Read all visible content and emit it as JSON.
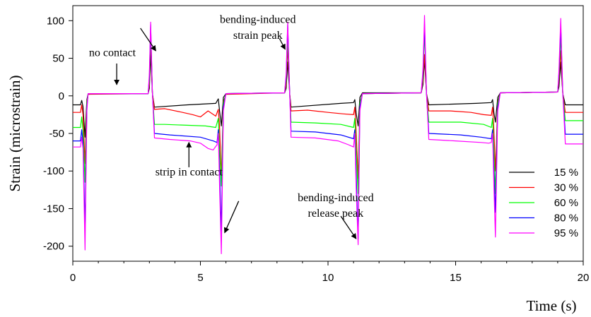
{
  "chart_data": {
    "type": "line",
    "xlabel": "Time (s)",
    "ylabel": "Strain (microstrain)",
    "xlim": [
      0,
      20
    ],
    "ylim": [
      -220,
      120
    ],
    "xticks": [
      0,
      5,
      10,
      15,
      20
    ],
    "yticks": [
      -200,
      -150,
      -100,
      -50,
      0,
      50,
      100
    ],
    "grid": false,
    "legend_position": "bottom-right",
    "series": [
      {
        "name": "15 %",
        "color": "#000000",
        "points": [
          [
            0,
            -12
          ],
          [
            0.3,
            -12
          ],
          [
            0.35,
            -6
          ],
          [
            0.4,
            -14
          ],
          [
            0.48,
            -55
          ],
          [
            0.55,
            -5
          ],
          [
            0.6,
            3
          ],
          [
            2.95,
            3
          ],
          [
            3.0,
            10
          ],
          [
            3.05,
            55
          ],
          [
            3.12,
            3
          ],
          [
            3.2,
            -15
          ],
          [
            4.5,
            -12
          ],
          [
            5.6,
            -10
          ],
          [
            5.7,
            -4
          ],
          [
            5.75,
            -20
          ],
          [
            5.82,
            -40
          ],
          [
            5.9,
            -2
          ],
          [
            6.0,
            3
          ],
          [
            8.3,
            4
          ],
          [
            8.36,
            10
          ],
          [
            8.42,
            45
          ],
          [
            8.5,
            3
          ],
          [
            8.55,
            -15
          ],
          [
            10.5,
            -10
          ],
          [
            11.0,
            -9
          ],
          [
            11.05,
            -5
          ],
          [
            11.1,
            -22
          ],
          [
            11.18,
            -40
          ],
          [
            11.25,
            -2
          ],
          [
            11.35,
            4
          ],
          [
            13.65,
            4
          ],
          [
            13.72,
            15
          ],
          [
            13.78,
            48
          ],
          [
            13.86,
            3
          ],
          [
            13.95,
            -12
          ],
          [
            15.8,
            -10
          ],
          [
            16.4,
            -9
          ],
          [
            16.45,
            -5
          ],
          [
            16.5,
            -22
          ],
          [
            16.56,
            -35
          ],
          [
            16.65,
            -2
          ],
          [
            16.75,
            4
          ],
          [
            19.0,
            5
          ],
          [
            19.05,
            12
          ],
          [
            19.12,
            45
          ],
          [
            19.2,
            3
          ],
          [
            19.3,
            -12
          ],
          [
            20,
            -12
          ]
        ]
      },
      {
        "name": "30 %",
        "color": "#ff0000",
        "points": [
          [
            0,
            -22
          ],
          [
            0.3,
            -22
          ],
          [
            0.35,
            -12
          ],
          [
            0.4,
            -25
          ],
          [
            0.48,
            -90
          ],
          [
            0.55,
            -8
          ],
          [
            0.6,
            2
          ],
          [
            2.95,
            3
          ],
          [
            3.0,
            15
          ],
          [
            3.05,
            75
          ],
          [
            3.12,
            3
          ],
          [
            3.2,
            -18
          ],
          [
            3.6,
            -17
          ],
          [
            4.3,
            -22
          ],
          [
            4.7,
            -25
          ],
          [
            5.0,
            -28
          ],
          [
            5.3,
            -20
          ],
          [
            5.6,
            -27
          ],
          [
            5.7,
            -18
          ],
          [
            5.75,
            -40
          ],
          [
            5.82,
            -110
          ],
          [
            5.9,
            -8
          ],
          [
            6.0,
            2
          ],
          [
            8.3,
            4
          ],
          [
            8.36,
            15
          ],
          [
            8.42,
            65
          ],
          [
            8.5,
            3
          ],
          [
            8.55,
            -20
          ],
          [
            9.2,
            -19
          ],
          [
            10.0,
            -22
          ],
          [
            10.6,
            -24
          ],
          [
            11.0,
            -25
          ],
          [
            11.05,
            -15
          ],
          [
            11.1,
            -45
          ],
          [
            11.18,
            -110
          ],
          [
            11.25,
            -10
          ],
          [
            11.35,
            3
          ],
          [
            13.65,
            4
          ],
          [
            13.72,
            20
          ],
          [
            13.78,
            55
          ],
          [
            13.86,
            3
          ],
          [
            13.95,
            -20
          ],
          [
            14.8,
            -20
          ],
          [
            15.6,
            -22
          ],
          [
            16.1,
            -25
          ],
          [
            16.4,
            -26
          ],
          [
            16.45,
            -15
          ],
          [
            16.5,
            -45
          ],
          [
            16.56,
            -100
          ],
          [
            16.65,
            -8
          ],
          [
            16.75,
            4
          ],
          [
            19.0,
            5
          ],
          [
            19.05,
            20
          ],
          [
            19.12,
            60
          ],
          [
            19.2,
            3
          ],
          [
            19.3,
            -22
          ],
          [
            20,
            -22
          ]
        ]
      },
      {
        "name": "60 %",
        "color": "#00ff00",
        "points": [
          [
            0,
            -42
          ],
          [
            0.3,
            -42
          ],
          [
            0.35,
            -28
          ],
          [
            0.4,
            -45
          ],
          [
            0.48,
            -115
          ],
          [
            0.55,
            -10
          ],
          [
            0.6,
            3
          ],
          [
            2.95,
            3
          ],
          [
            3.0,
            20
          ],
          [
            3.05,
            85
          ],
          [
            3.12,
            3
          ],
          [
            3.2,
            -38
          ],
          [
            3.6,
            -38
          ],
          [
            5.2,
            -40
          ],
          [
            5.6,
            -42
          ],
          [
            5.7,
            -30
          ],
          [
            5.75,
            -70
          ],
          [
            5.82,
            -120
          ],
          [
            5.9,
            -10
          ],
          [
            6.0,
            3
          ],
          [
            8.3,
            4
          ],
          [
            8.36,
            20
          ],
          [
            8.42,
            80
          ],
          [
            8.5,
            3
          ],
          [
            8.55,
            -35
          ],
          [
            9.5,
            -36
          ],
          [
            10.5,
            -38
          ],
          [
            11.0,
            -42
          ],
          [
            11.05,
            -30
          ],
          [
            11.1,
            -70
          ],
          [
            11.18,
            -130
          ],
          [
            11.25,
            -10
          ],
          [
            11.35,
            3
          ],
          [
            13.65,
            4
          ],
          [
            13.72,
            25
          ],
          [
            13.78,
            85
          ],
          [
            13.86,
            3
          ],
          [
            13.95,
            -35
          ],
          [
            15.2,
            -35
          ],
          [
            16.1,
            -38
          ],
          [
            16.4,
            -42
          ],
          [
            16.45,
            -30
          ],
          [
            16.5,
            -70
          ],
          [
            16.56,
            -130
          ],
          [
            16.65,
            -10
          ],
          [
            16.75,
            4
          ],
          [
            19.0,
            5
          ],
          [
            19.05,
            25
          ],
          [
            19.12,
            80
          ],
          [
            19.2,
            3
          ],
          [
            19.3,
            -33
          ],
          [
            20,
            -33
          ]
        ]
      },
      {
        "name": "80 %",
        "color": "#0000ff",
        "points": [
          [
            0,
            -60
          ],
          [
            0.3,
            -60
          ],
          [
            0.35,
            -45
          ],
          [
            0.4,
            -62
          ],
          [
            0.48,
            -175
          ],
          [
            0.55,
            -15
          ],
          [
            0.6,
            3
          ],
          [
            2.95,
            3
          ],
          [
            3.0,
            25
          ],
          [
            3.05,
            95
          ],
          [
            3.12,
            3
          ],
          [
            3.2,
            -50
          ],
          [
            3.8,
            -52
          ],
          [
            5.0,
            -55
          ],
          [
            5.5,
            -60
          ],
          [
            5.65,
            -62
          ],
          [
            5.7,
            -45
          ],
          [
            5.75,
            -100
          ],
          [
            5.82,
            -180
          ],
          [
            5.9,
            -15
          ],
          [
            6.0,
            3
          ],
          [
            8.3,
            4
          ],
          [
            8.36,
            25
          ],
          [
            8.42,
            95
          ],
          [
            8.5,
            3
          ],
          [
            8.55,
            -47
          ],
          [
            9.5,
            -48
          ],
          [
            10.5,
            -52
          ],
          [
            11.0,
            -57
          ],
          [
            11.05,
            -45
          ],
          [
            11.1,
            -100
          ],
          [
            11.18,
            -190
          ],
          [
            11.25,
            -15
          ],
          [
            11.35,
            3
          ],
          [
            13.65,
            4
          ],
          [
            13.72,
            30
          ],
          [
            13.78,
            95
          ],
          [
            13.86,
            3
          ],
          [
            13.95,
            -50
          ],
          [
            15.2,
            -52
          ],
          [
            16.0,
            -55
          ],
          [
            16.4,
            -57
          ],
          [
            16.45,
            -45
          ],
          [
            16.5,
            -100
          ],
          [
            16.56,
            -155
          ],
          [
            16.65,
            -15
          ],
          [
            16.75,
            4
          ],
          [
            19.0,
            5
          ],
          [
            19.05,
            30
          ],
          [
            19.12,
            92
          ],
          [
            19.2,
            3
          ],
          [
            19.3,
            -51
          ],
          [
            20,
            -51
          ]
        ]
      },
      {
        "name": "95 %",
        "color": "#ff00ff",
        "points": [
          [
            0,
            -68
          ],
          [
            0.3,
            -68
          ],
          [
            0.35,
            -55
          ],
          [
            0.4,
            -70
          ],
          [
            0.48,
            -205
          ],
          [
            0.55,
            -20
          ],
          [
            0.6,
            3
          ],
          [
            2.95,
            3
          ],
          [
            3.0,
            30
          ],
          [
            3.05,
            98
          ],
          [
            3.12,
            3
          ],
          [
            3.2,
            -56
          ],
          [
            3.8,
            -58
          ],
          [
            4.6,
            -60
          ],
          [
            5.0,
            -63
          ],
          [
            5.3,
            -70
          ],
          [
            5.5,
            -72
          ],
          [
            5.65,
            -65
          ],
          [
            5.7,
            -50
          ],
          [
            5.75,
            -120
          ],
          [
            5.82,
            -210
          ],
          [
            5.9,
            -20
          ],
          [
            6.0,
            3
          ],
          [
            8.3,
            4
          ],
          [
            8.36,
            30
          ],
          [
            8.42,
            98
          ],
          [
            8.5,
            3
          ],
          [
            8.55,
            -55
          ],
          [
            9.5,
            -56
          ],
          [
            10.4,
            -60
          ],
          [
            10.8,
            -65
          ],
          [
            11.0,
            -68
          ],
          [
            11.05,
            -50
          ],
          [
            11.1,
            -120
          ],
          [
            11.18,
            -198
          ],
          [
            11.25,
            -20
          ],
          [
            11.35,
            3
          ],
          [
            13.65,
            4
          ],
          [
            13.72,
            35
          ],
          [
            13.78,
            107
          ],
          [
            13.86,
            3
          ],
          [
            13.95,
            -58
          ],
          [
            15.0,
            -60
          ],
          [
            16.0,
            -62
          ],
          [
            16.3,
            -63
          ],
          [
            16.4,
            -62
          ],
          [
            16.45,
            -50
          ],
          [
            16.5,
            -120
          ],
          [
            16.56,
            -188
          ],
          [
            16.65,
            -20
          ],
          [
            16.75,
            4
          ],
          [
            19.0,
            5
          ],
          [
            19.05,
            35
          ],
          [
            19.12,
            103
          ],
          [
            19.2,
            3
          ],
          [
            19.3,
            -64
          ],
          [
            20,
            -64
          ]
        ]
      }
    ],
    "annotations": [
      {
        "text": "bending-induced",
        "x": 7.25,
        "y": 97
      },
      {
        "text": "strain peak",
        "x": 7.25,
        "y": 76
      },
      {
        "text": "no contact",
        "x": 1.55,
        "y": 53
      },
      {
        "text": "strip in contact",
        "x": 4.55,
        "y": -106
      },
      {
        "text": "bending-induced",
        "x": 10.3,
        "y": -140
      },
      {
        "text": "release peak",
        "x": 10.3,
        "y": -161
      }
    ]
  }
}
